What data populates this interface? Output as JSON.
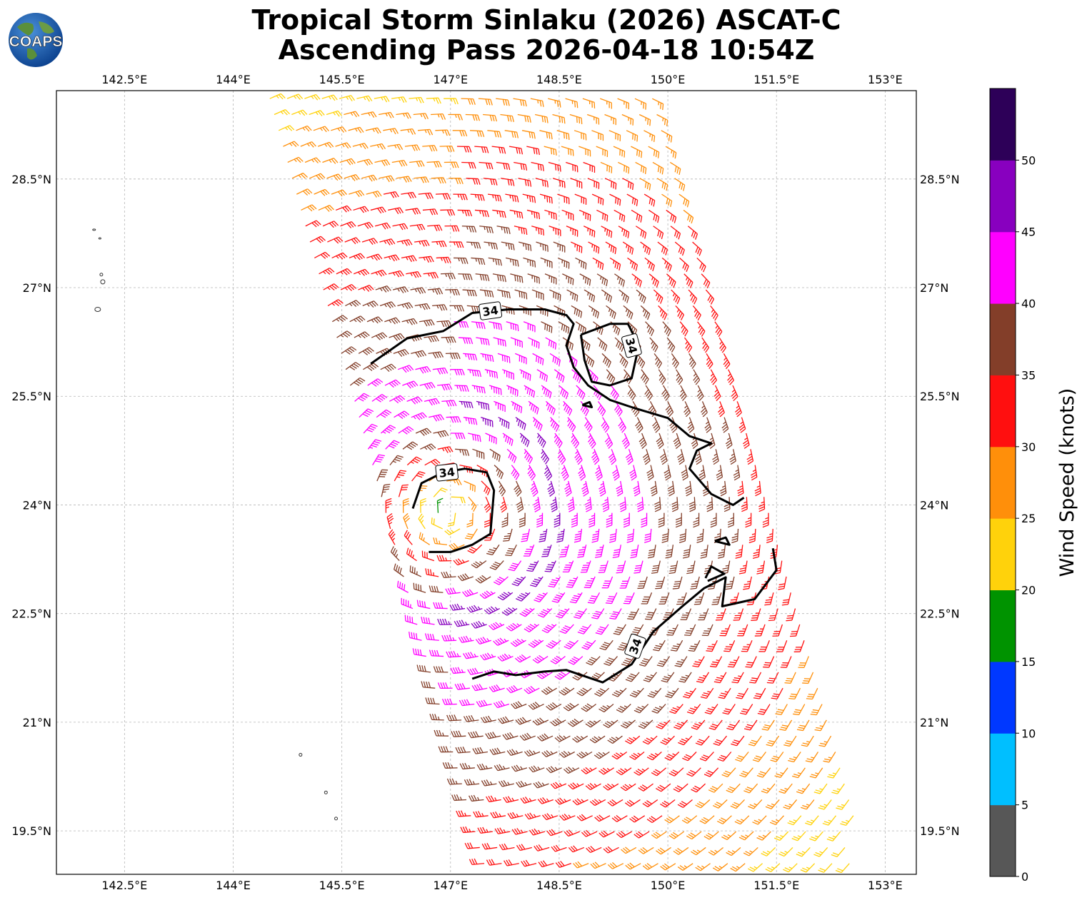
{
  "header": {
    "title_line1": "Tropical Storm Sinlaku (2026) ASCAT-C",
    "title_line2": "Ascending Pass 2026-04-18 10:54Z",
    "logo_text": "COAPS"
  },
  "map": {
    "lon_ticks": [
      "142.5°E",
      "144°E",
      "145.5°E",
      "147°E",
      "148.5°E",
      "150°E",
      "151.5°E",
      "153°E"
    ],
    "lat_ticks": [
      "28.5°N",
      "27°N",
      "25.5°N",
      "24°N",
      "22.5°N",
      "21°N",
      "19.5°N"
    ],
    "lon_values": [
      142.5,
      144,
      145.5,
      147,
      148.5,
      150,
      151.5,
      153
    ],
    "lat_values": [
      28.5,
      27,
      25.5,
      24,
      22.5,
      21,
      19.5
    ],
    "lon_range": [
      141.56,
      153.43
    ],
    "lat_range": [
      18.9,
      29.72
    ],
    "storm_center": {
      "lon": 147.0,
      "lat": 23.9
    },
    "contour_labels": [
      "34",
      "34",
      "34",
      "34"
    ]
  },
  "colorbar": {
    "title": "Wind Speed (knots)",
    "ticks": [
      "0",
      "5",
      "10",
      "15",
      "20",
      "25",
      "30",
      "35",
      "40",
      "45",
      "50"
    ],
    "colors": [
      "#575757",
      "#00bfff",
      "#0038ff",
      "#009300",
      "#ffd20b",
      "#ff8f0a",
      "#ff0f0f",
      "#833e29",
      "#ff00ff",
      "#8800bf",
      "#2d0058"
    ]
  }
}
